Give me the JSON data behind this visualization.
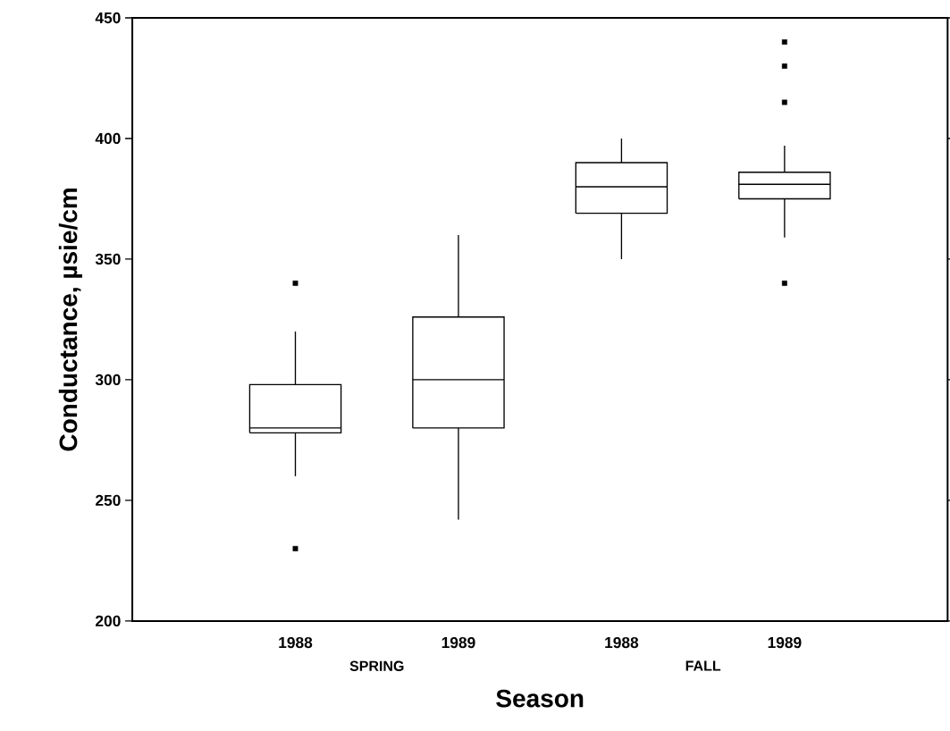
{
  "chart_data": {
    "type": "box",
    "xlabel": "Season",
    "ylabel": "Conductance, µsie/cm",
    "categories": [
      "1988",
      "1989",
      "1988",
      "1989"
    ],
    "boxes": [
      {
        "low": 260,
        "q1": 278,
        "median": 280,
        "q3": 298,
        "high": 320,
        "outliers": [
          340,
          230
        ]
      },
      {
        "low": 242,
        "q1": 280,
        "median": 300,
        "q3": 326,
        "high": 360
      },
      {
        "low": 350,
        "q1": 369,
        "median": 380,
        "q3": 390,
        "high": 400
      },
      {
        "low": 359,
        "q1": 375,
        "median": 381,
        "q3": 386,
        "high": 397,
        "outliers": [
          440,
          430,
          415,
          340
        ]
      }
    ],
    "annotations": [
      "SPRING",
      "FALL"
    ],
    "ylim": [
      200,
      450
    ],
    "yticks": [
      200,
      250,
      300,
      350,
      400,
      450
    ],
    "marker": "square"
  }
}
